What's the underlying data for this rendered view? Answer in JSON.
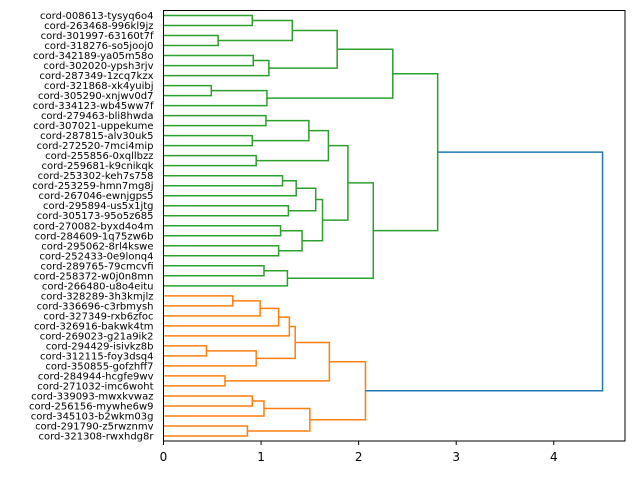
{
  "chart_data": {
    "type": "dendrogram",
    "orientation": "left-to-right",
    "title": "",
    "xlabel": "",
    "ylabel": "",
    "xlim": [
      0,
      4.73
    ],
    "x_ticks": [
      "0",
      "1",
      "2",
      "3",
      "4"
    ],
    "grid": false,
    "colors": {
      "cluster_1": "#2ca02c",
      "cluster_2": "#ff7f0e",
      "root": "#1f77b4"
    },
    "leaves": [
      "cord-008613-tysyq6o4",
      "cord-263468-996kl9jz",
      "cord-301997-63160t7f",
      "cord-318276-so5jooj0",
      "cord-342189-ya05m58o",
      "cord-302020-ypsh3rjv",
      "cord-287349-1zcq7kzx",
      "cord-321868-xk4yuibj",
      "cord-305290-xnjwv0d7",
      "cord-334123-wb45ww7f",
      "cord-279463-bli8hwda",
      "cord-307021-uppekume",
      "cord-287815-alv30uk5",
      "cord-272520-7mci4mip",
      "cord-255856-0xqllbzz",
      "cord-259681-k9cnikqk",
      "cord-253302-keh7s758",
      "cord-253259-hmn7mg8j",
      "cord-267046-ewnjgps5",
      "cord-295894-us5x1jtg",
      "cord-305173-95o5z685",
      "cord-270082-byxd4o4m",
      "cord-284609-1q75zw6b",
      "cord-295062-8rl4kswe",
      "cord-252433-0e9lonq4",
      "cord-289765-79cmcvfi",
      "cord-258372-w0j0n8mn",
      "cord-266480-u8o4eitu",
      "cord-328289-3h3kmjlz",
      "cord-336696-c3rbmysh",
      "cord-327349-rxb6zfoc",
      "cord-326916-bakwk4tm",
      "cord-269023-g21a9ik2",
      "cord-294429-isivkz8b",
      "cord-312115-foy3dsq4",
      "cord-350855-gofzhff7",
      "cord-284944-hcgfe9wv",
      "cord-271032-imc6woht",
      "cord-339093-mwxkvwaz",
      "cord-256156-mywhe6w9",
      "cord-345103-b2wkm03g",
      "cord-291790-z5rwznmv",
      "cord-321308-rwxhdg8r"
    ],
    "merges": [
      [
        0,
        1,
        0.91,
        "cluster_1"
      ],
      [
        2,
        3,
        0.56,
        "cluster_1"
      ],
      [
        43,
        44,
        1.32,
        "cluster_1"
      ],
      [
        4,
        5,
        0.92,
        "cluster_1"
      ],
      [
        46,
        6,
        1.08,
        "cluster_1"
      ],
      [
        45,
        47,
        1.78,
        "cluster_1"
      ],
      [
        7,
        8,
        0.49,
        "cluster_1"
      ],
      [
        49,
        9,
        1.06,
        "cluster_1"
      ],
      [
        48,
        50,
        2.35,
        "cluster_1"
      ],
      [
        10,
        11,
        1.05,
        "cluster_1"
      ],
      [
        12,
        13,
        0.91,
        "cluster_1"
      ],
      [
        52,
        53,
        1.49,
        "cluster_1"
      ],
      [
        14,
        15,
        0.95,
        "cluster_1"
      ],
      [
        54,
        55,
        1.69,
        "cluster_1"
      ],
      [
        16,
        17,
        1.22,
        "cluster_1"
      ],
      [
        57,
        18,
        1.36,
        "cluster_1"
      ],
      [
        19,
        20,
        1.28,
        "cluster_1"
      ],
      [
        58,
        59,
        1.56,
        "cluster_1"
      ],
      [
        21,
        22,
        1.2,
        "cluster_1"
      ],
      [
        23,
        24,
        1.18,
        "cluster_1"
      ],
      [
        61,
        62,
        1.42,
        "cluster_1"
      ],
      [
        60,
        63,
        1.63,
        "cluster_1"
      ],
      [
        56,
        64,
        1.89,
        "cluster_1"
      ],
      [
        25,
        26,
        1.03,
        "cluster_1"
      ],
      [
        66,
        27,
        1.27,
        "cluster_1"
      ],
      [
        65,
        67,
        2.15,
        "cluster_1"
      ],
      [
        51,
        68,
        2.81,
        "cluster_1"
      ],
      [
        28,
        29,
        0.71,
        "cluster_2"
      ],
      [
        70,
        30,
        0.99,
        "cluster_2"
      ],
      [
        71,
        31,
        1.18,
        "cluster_2"
      ],
      [
        72,
        32,
        1.29,
        "cluster_2"
      ],
      [
        33,
        34,
        0.44,
        "cluster_2"
      ],
      [
        74,
        35,
        0.95,
        "cluster_2"
      ],
      [
        73,
        75,
        1.35,
        "cluster_2"
      ],
      [
        36,
        37,
        0.63,
        "cluster_2"
      ],
      [
        76,
        77,
        1.7,
        "cluster_2"
      ],
      [
        38,
        39,
        0.91,
        "cluster_2"
      ],
      [
        79,
        40,
        1.03,
        "cluster_2"
      ],
      [
        41,
        42,
        0.86,
        "cluster_2"
      ],
      [
        80,
        81,
        1.5,
        "cluster_2"
      ],
      [
        78,
        82,
        2.07,
        "cluster_2"
      ],
      [
        69,
        83,
        4.5,
        "root"
      ]
    ]
  }
}
